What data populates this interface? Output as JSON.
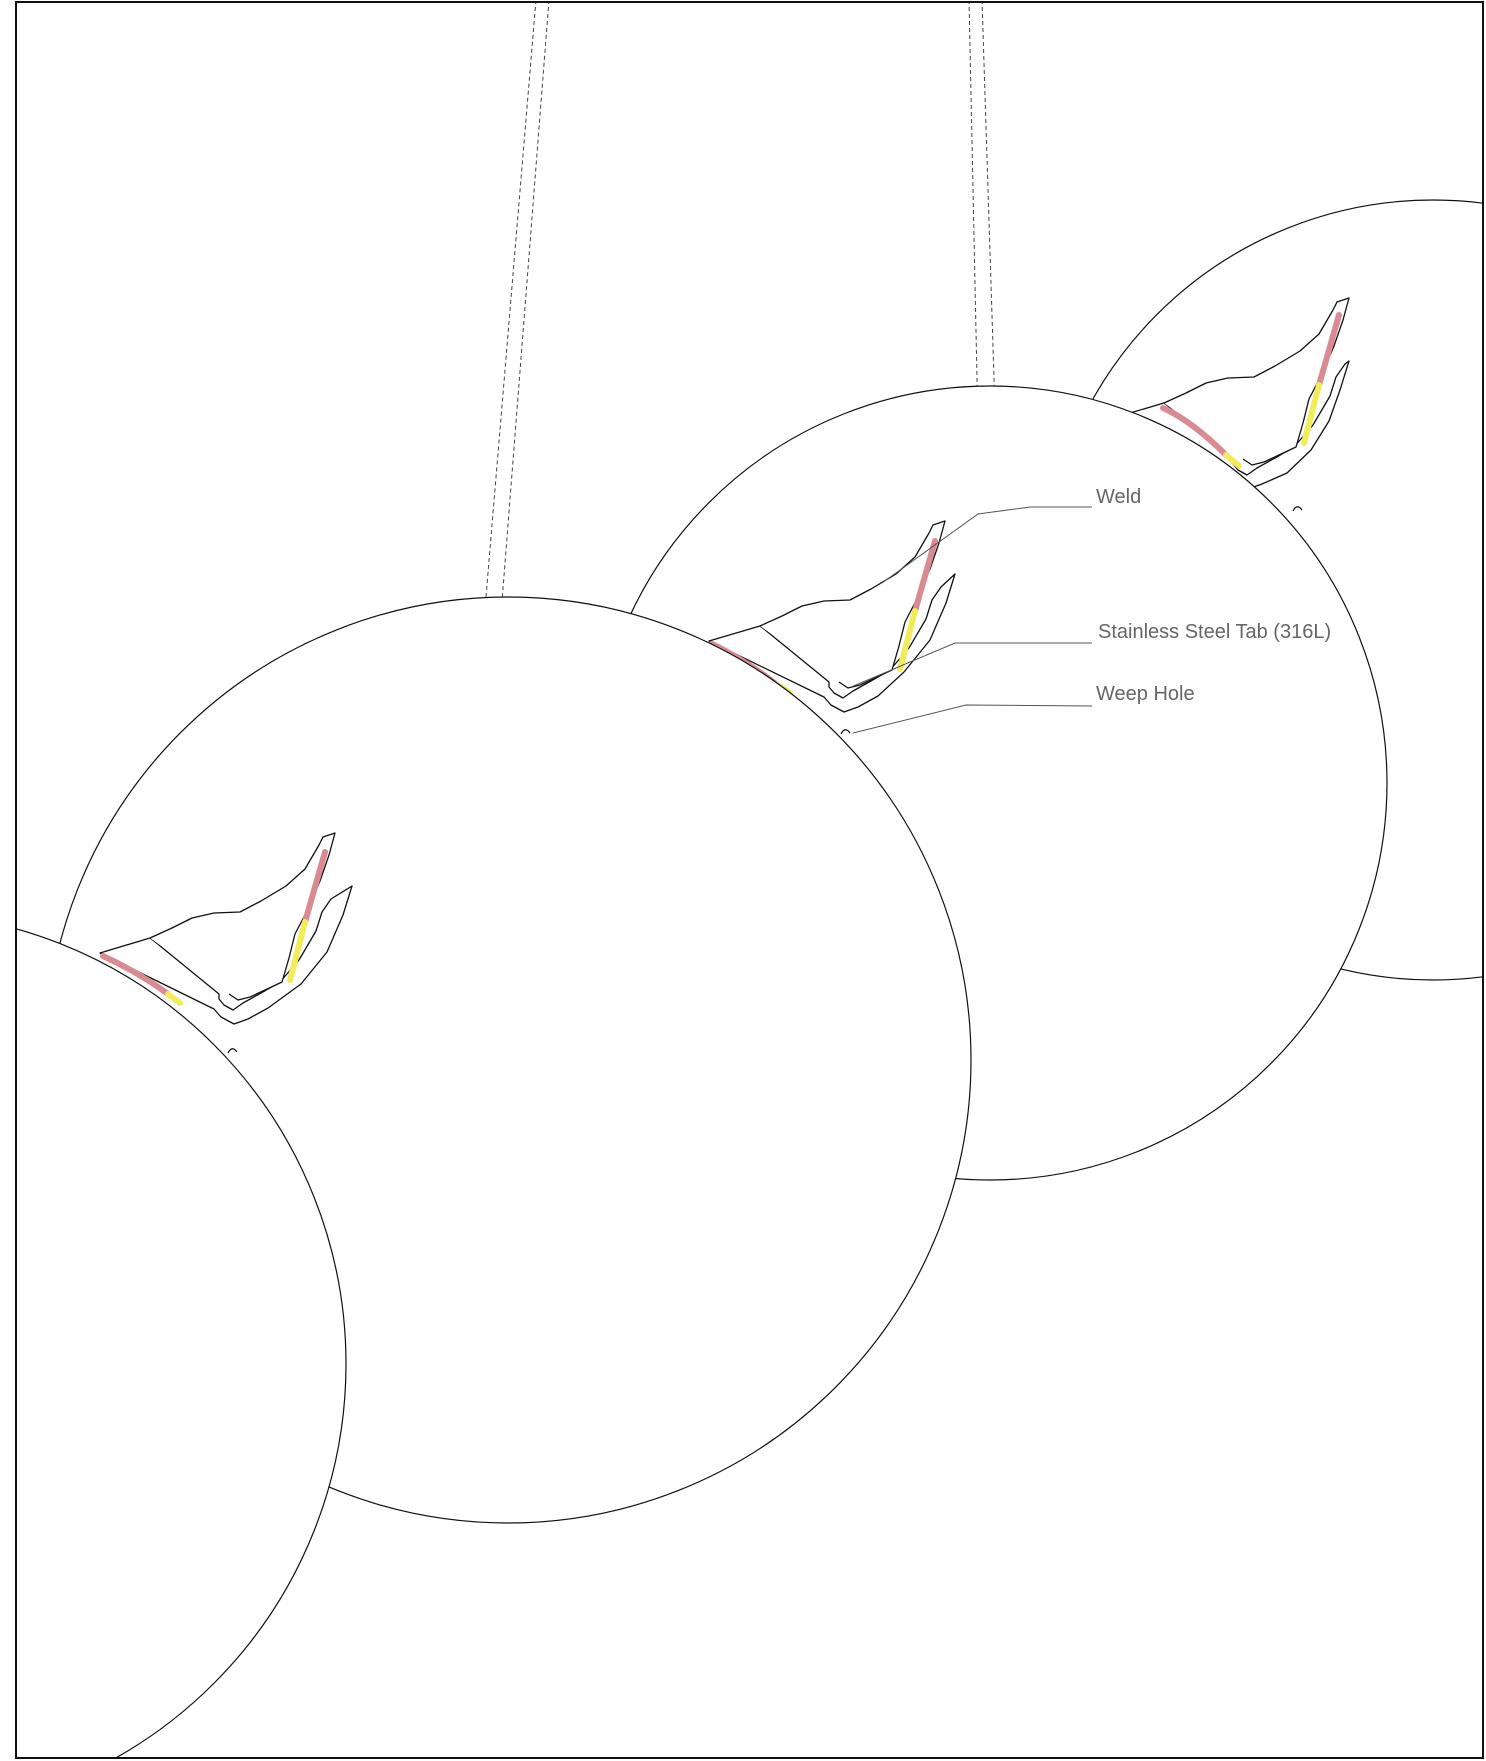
{
  "callouts": {
    "weld": "Weld",
    "tab": "Stainless Steel Tab (316L)",
    "weep_hole": "Weep Hole"
  },
  "colors": {
    "weld_red": "#d98a93",
    "weld_yellow": "#f1ec5a",
    "outline": "#111111",
    "callout_text": "#666666",
    "background": "#ffffff"
  }
}
